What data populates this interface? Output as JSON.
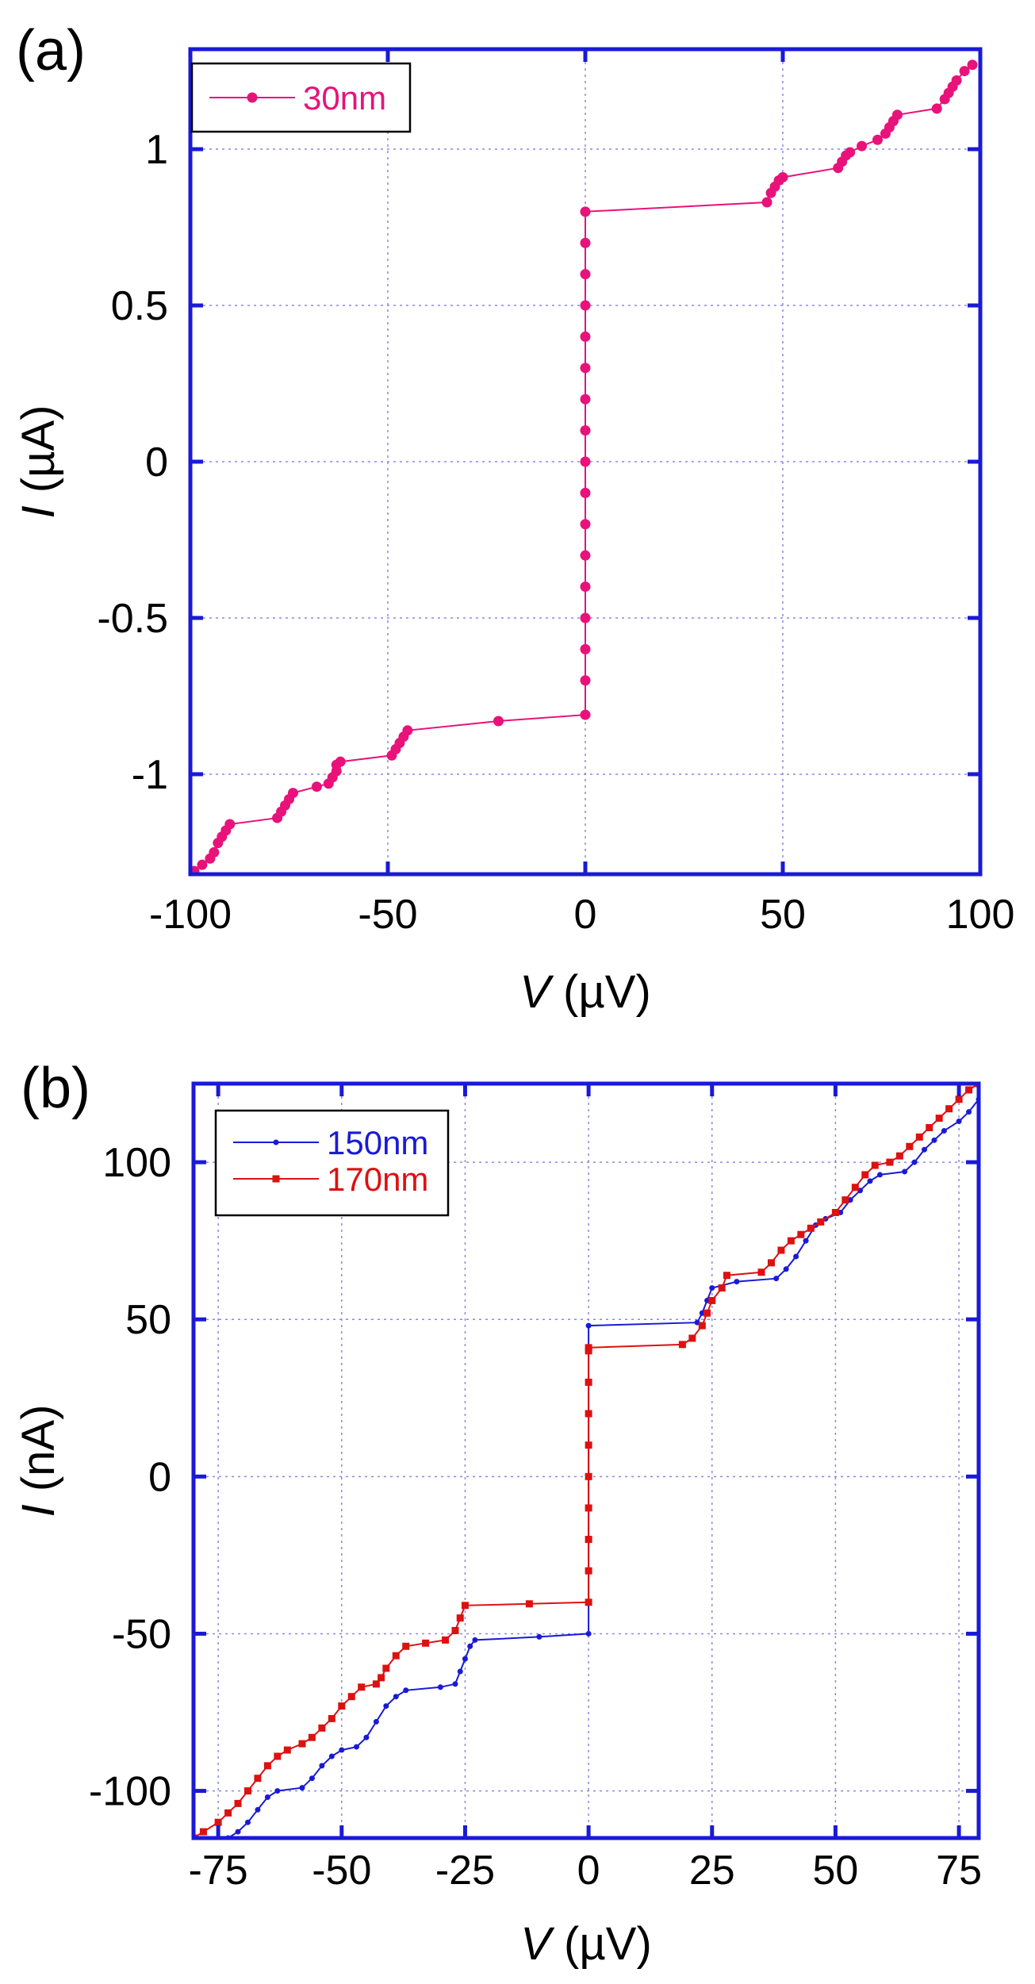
{
  "chart_data": [
    {
      "type": "line",
      "panel_label": "(a)",
      "xlabel_symbol": "V",
      "xlabel_unit": "(µV)",
      "ylabel_symbol": "I",
      "ylabel_unit": "(µA)",
      "xlim": [
        -100,
        100
      ],
      "ylim": [
        -1.32,
        1.32
      ],
      "xticks": [
        -100,
        -50,
        0,
        50,
        100
      ],
      "xtick_labels": [
        "-100",
        "-50",
        "0",
        "50",
        "100"
      ],
      "yticks": [
        -1,
        -0.5,
        0,
        0.5,
        1
      ],
      "ytick_labels": [
        "-1",
        "-0.5",
        "0",
        "0.5",
        "1"
      ],
      "grid": true,
      "legend_position": "top-left",
      "axis_color": "#1a1ad6",
      "grid_color": "#8a8ae0",
      "series": [
        {
          "name": "30nm",
          "color": "#e8127a",
          "marker": "circle",
          "points": [
            [
              -99,
              -1.31
            ],
            [
              -97,
              -1.29
            ],
            [
              -95,
              -1.27
            ],
            [
              -94,
              -1.25
            ],
            [
              -93,
              -1.22
            ],
            [
              -92,
              -1.2
            ],
            [
              -91,
              -1.18
            ],
            [
              -90,
              -1.16
            ],
            [
              -78,
              -1.14
            ],
            [
              -77,
              -1.12
            ],
            [
              -76,
              -1.1
            ],
            [
              -75,
              -1.08
            ],
            [
              -74,
              -1.06
            ],
            [
              -68,
              -1.04
            ],
            [
              -65,
              -1.03
            ],
            [
              -64,
              -1.01
            ],
            [
              -63,
              -0.99
            ],
            [
              -63,
              -0.97
            ],
            [
              -62,
              -0.96
            ],
            [
              -49,
              -0.94
            ],
            [
              -48,
              -0.92
            ],
            [
              -47,
              -0.9
            ],
            [
              -46,
              -0.88
            ],
            [
              -45,
              -0.86
            ],
            [
              -22,
              -0.83
            ],
            [
              0,
              -0.81
            ],
            [
              0,
              -0.7
            ],
            [
              0,
              -0.6
            ],
            [
              0,
              -0.5
            ],
            [
              0,
              -0.4
            ],
            [
              0,
              -0.3
            ],
            [
              0,
              -0.2
            ],
            [
              0,
              -0.1
            ],
            [
              0,
              0
            ],
            [
              0,
              0.1
            ],
            [
              0,
              0.2
            ],
            [
              0,
              0.3
            ],
            [
              0,
              0.4
            ],
            [
              0,
              0.5
            ],
            [
              0,
              0.6
            ],
            [
              0,
              0.7
            ],
            [
              0,
              0.8
            ],
            [
              46,
              0.83
            ],
            [
              47,
              0.86
            ],
            [
              48,
              0.88
            ],
            [
              49,
              0.9
            ],
            [
              50,
              0.91
            ],
            [
              64,
              0.94
            ],
            [
              65,
              0.96
            ],
            [
              66,
              0.98
            ],
            [
              67,
              0.99
            ],
            [
              70,
              1.01
            ],
            [
              74,
              1.03
            ],
            [
              76,
              1.05
            ],
            [
              77,
              1.07
            ],
            [
              78,
              1.09
            ],
            [
              79,
              1.11
            ],
            [
              89,
              1.13
            ],
            [
              91,
              1.16
            ],
            [
              92,
              1.18
            ],
            [
              93,
              1.2
            ],
            [
              94,
              1.22
            ],
            [
              96,
              1.25
            ],
            [
              98,
              1.27
            ]
          ]
        }
      ]
    },
    {
      "type": "line",
      "panel_label": "(b)",
      "xlabel_symbol": "V",
      "xlabel_unit": "(µV)",
      "ylabel_symbol": "I",
      "ylabel_unit": "(nA)",
      "xlim": [
        -80,
        79
      ],
      "ylim": [
        -115,
        125
      ],
      "xticks": [
        -75,
        -50,
        -25,
        0,
        25,
        50,
        75
      ],
      "xtick_labels": [
        "-75",
        "-50",
        "-25",
        "0",
        "25",
        "50",
        "75"
      ],
      "yticks": [
        -100,
        -50,
        0,
        50,
        100
      ],
      "ytick_labels": [
        "-100",
        "-50",
        "0",
        "50",
        "100"
      ],
      "grid": true,
      "legend_position": "top-left",
      "axis_color": "#1a1ad6",
      "grid_color": "#8a8ae0",
      "series": [
        {
          "name": "150nm",
          "color": "#1a1ad6",
          "marker": "dot",
          "points": [
            [
              -73,
              -115
            ],
            [
              -71,
              -113
            ],
            [
              -69,
              -110
            ],
            [
              -67,
              -106
            ],
            [
              -65,
              -102
            ],
            [
              -63,
              -100
            ],
            [
              -58,
              -99
            ],
            [
              -56,
              -96
            ],
            [
              -54,
              -92
            ],
            [
              -52,
              -89
            ],
            [
              -50,
              -87
            ],
            [
              -47,
              -86
            ],
            [
              -45,
              -83
            ],
            [
              -43,
              -78
            ],
            [
              -41,
              -73
            ],
            [
              -39,
              -70
            ],
            [
              -37,
              -68
            ],
            [
              -30,
              -67
            ],
            [
              -27,
              -66
            ],
            [
              -26,
              -62
            ],
            [
              -25,
              -58
            ],
            [
              -24,
              -54
            ],
            [
              -23,
              -52
            ],
            [
              -10,
              -51
            ],
            [
              0,
              -50
            ],
            [
              0,
              -40
            ],
            [
              0,
              -30
            ],
            [
              0,
              -20
            ],
            [
              0,
              -10
            ],
            [
              0,
              0
            ],
            [
              0,
              10
            ],
            [
              0,
              20
            ],
            [
              0,
              30
            ],
            [
              0,
              40
            ],
            [
              0,
              48
            ],
            [
              22,
              49
            ],
            [
              23,
              52
            ],
            [
              24,
              56
            ],
            [
              25,
              60
            ],
            [
              30,
              62
            ],
            [
              38,
              63
            ],
            [
              40,
              66
            ],
            [
              42,
              70
            ],
            [
              44,
              75
            ],
            [
              46,
              80
            ],
            [
              48,
              82
            ],
            [
              51,
              84
            ],
            [
              53,
              88
            ],
            [
              55,
              91
            ],
            [
              57,
              94
            ],
            [
              59,
              96
            ],
            [
              64,
              97
            ],
            [
              66,
              100
            ],
            [
              68,
              104
            ],
            [
              70,
              107
            ],
            [
              72,
              110
            ],
            [
              75,
              113
            ],
            [
              77,
              116
            ],
            [
              79,
              120
            ]
          ]
        },
        {
          "name": "170nm",
          "color": "#dd1111",
          "marker": "square",
          "points": [
            [
              -80,
              -115
            ],
            [
              -78,
              -113
            ],
            [
              -75,
              -110
            ],
            [
              -73,
              -107
            ],
            [
              -71,
              -104
            ],
            [
              -69,
              -100
            ],
            [
              -67,
              -96
            ],
            [
              -65,
              -92
            ],
            [
              -63,
              -89
            ],
            [
              -61,
              -87
            ],
            [
              -58,
              -85
            ],
            [
              -56,
              -83
            ],
            [
              -54,
              -80
            ],
            [
              -52,
              -77
            ],
            [
              -50,
              -73
            ],
            [
              -48,
              -70
            ],
            [
              -46,
              -67
            ],
            [
              -43,
              -66
            ],
            [
              -42,
              -64
            ],
            [
              -41,
              -61
            ],
            [
              -39,
              -57
            ],
            [
              -37,
              -54
            ],
            [
              -33,
              -53
            ],
            [
              -29,
              -52
            ],
            [
              -27,
              -49
            ],
            [
              -26,
              -45
            ],
            [
              -25,
              -41
            ],
            [
              -12,
              -40.5
            ],
            [
              0,
              -40
            ],
            [
              0,
              -30
            ],
            [
              0,
              -20
            ],
            [
              0,
              -10
            ],
            [
              0,
              0
            ],
            [
              0,
              10
            ],
            [
              0,
              20
            ],
            [
              0,
              30
            ],
            [
              0,
              40
            ],
            [
              0,
              41
            ],
            [
              19,
              42
            ],
            [
              21,
              44
            ],
            [
              23,
              48
            ],
            [
              24,
              52
            ],
            [
              25,
              56
            ],
            [
              27,
              60
            ],
            [
              28,
              64
            ],
            [
              35,
              65
            ],
            [
              37,
              68
            ],
            [
              39,
              72
            ],
            [
              41,
              75
            ],
            [
              43,
              77
            ],
            [
              45,
              79
            ],
            [
              47,
              81
            ],
            [
              50,
              84
            ],
            [
              52,
              88
            ],
            [
              54,
              92
            ],
            [
              56,
              96
            ],
            [
              58,
              99
            ],
            [
              61,
              100
            ],
            [
              63,
              102
            ],
            [
              65,
              105
            ],
            [
              67,
              108
            ],
            [
              69,
              111
            ],
            [
              71,
              114
            ],
            [
              73,
              117
            ],
            [
              75,
              120
            ],
            [
              77,
              123
            ],
            [
              79,
              125
            ]
          ]
        }
      ]
    }
  ]
}
